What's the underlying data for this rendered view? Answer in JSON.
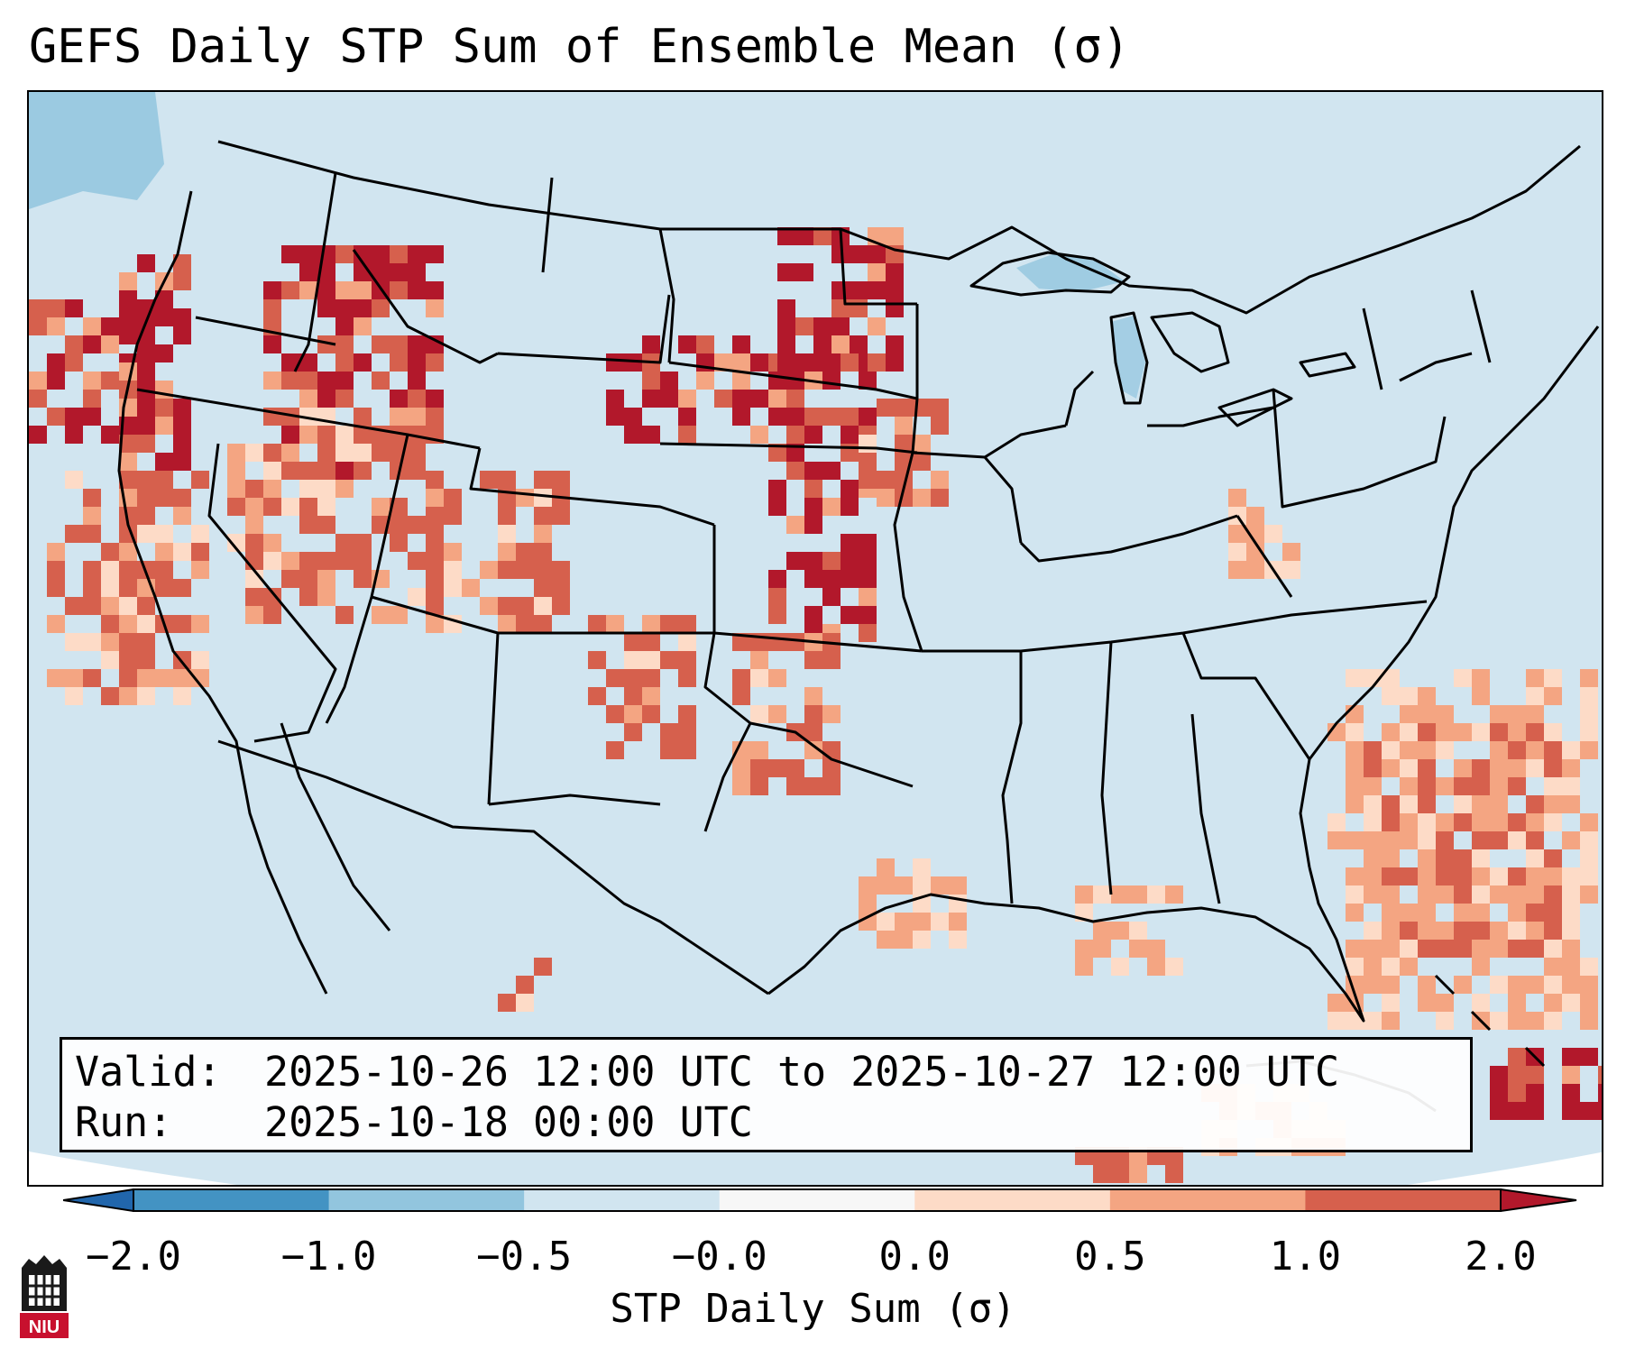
{
  "title": "GEFS Daily STP Sum of Ensemble Mean (σ)",
  "info": {
    "valid_label": "Valid:",
    "valid_value": "2025-10-26 12:00 UTC to 2025-10-27 12:00 UTC",
    "run_label": "Run:",
    "run_value": "2025-10-18 00:00 UTC"
  },
  "colorbar": {
    "label": "STP Daily Sum (σ)",
    "ticks": [
      "−2.0",
      "−1.0",
      "−0.5",
      "−0.0",
      "0.0",
      "0.5",
      "1.0",
      "2.0"
    ],
    "bin_colors": [
      "#4393c3",
      "#92c5de",
      "#d1e5f0",
      "#f7f7f7",
      "#fddbc7",
      "#f4a582",
      "#d6604d"
    ],
    "extend_low_color": "#2166ac",
    "extend_high_color": "#b2182b"
  },
  "map": {
    "projection": "Lambert conformal, CONUS",
    "background_value_color": "#d1e5f0",
    "outside_domain_color": "#ffffff"
  },
  "logo": {
    "text": "NIU"
  }
}
